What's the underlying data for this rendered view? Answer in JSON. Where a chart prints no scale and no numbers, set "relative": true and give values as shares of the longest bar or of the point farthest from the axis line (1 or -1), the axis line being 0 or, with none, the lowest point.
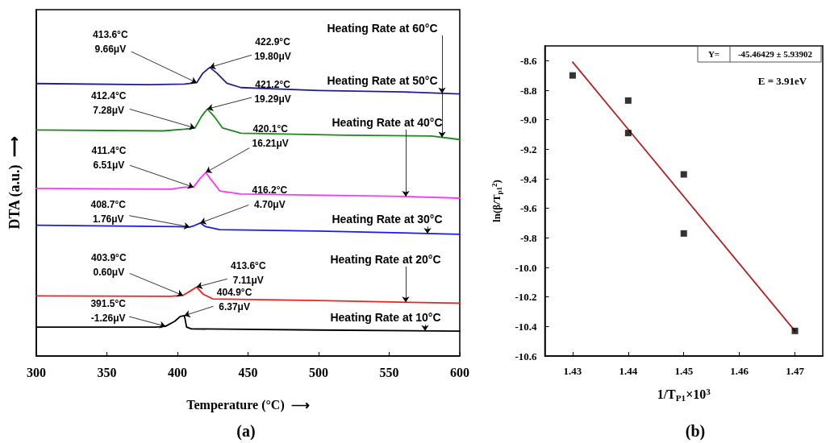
{
  "chart_data": [
    {
      "type": "line",
      "relative": true,
      "marker": "none",
      "xlabel": "Temperature (°C)  ⟶",
      "ylabel": "DTA (a.u.)  ⟶",
      "xlim": [
        300,
        600
      ],
      "xticks": [
        300,
        350,
        400,
        450,
        500,
        550,
        600
      ],
      "series": [
        {
          "name": "Heating Rate at 60°C",
          "color": "#1f1f8c",
          "x": [
            300,
            380,
            405,
            413.6,
            418,
            422.9,
            428,
            435,
            445,
            500,
            560,
            600
          ],
          "values": [
            0.944,
            0.94,
            0.942,
            0.947,
            0.98,
            1.0,
            0.98,
            0.945,
            0.93,
            0.92,
            0.915,
            0.908
          ]
        },
        {
          "name": "Heating Rate at 50°C",
          "color": "#1a8a1a",
          "x": [
            300,
            390,
            405,
            412.4,
            417,
            421.2,
            426,
            432,
            445,
            520,
            580,
            600
          ],
          "values": [
            0.783,
            0.78,
            0.786,
            0.79,
            0.83,
            0.856,
            0.83,
            0.79,
            0.772,
            0.765,
            0.762,
            0.75
          ]
        },
        {
          "name": "Heating Rate at 40°C",
          "color": "#ff33ff",
          "x": [
            300,
            395,
            405,
            411.4,
            416,
            420.1,
            424,
            430,
            445,
            560,
            600
          ],
          "values": [
            0.581,
            0.578,
            0.585,
            0.585,
            0.615,
            0.636,
            0.61,
            0.572,
            0.561,
            0.553,
            0.547
          ]
        },
        {
          "name": "Heating Rate at 30°C",
          "color": "#1a1aee",
          "x": [
            300,
            400,
            408.7,
            412,
            416.2,
            420,
            430,
            500,
            600
          ],
          "values": [
            0.453,
            0.448,
            0.447,
            0.452,
            0.461,
            0.448,
            0.438,
            0.433,
            0.422
          ]
        },
        {
          "name": "Heating Rate at 20°C",
          "color": "#ee2222",
          "x": [
            300,
            395,
            403.9,
            409,
            413.6,
            418,
            425,
            500,
            600
          ],
          "values": [
            0.208,
            0.207,
            0.21,
            0.225,
            0.239,
            0.215,
            0.198,
            0.192,
            0.183
          ]
        },
        {
          "name": "Heating Rate at 10°C",
          "color": "#000000",
          "x": [
            300,
            385,
            391.5,
            398,
            402,
            404.9,
            406.5,
            410,
            500,
            600
          ],
          "values": [
            0.1,
            0.1,
            0.103,
            0.12,
            0.137,
            0.14,
            0.1,
            0.094,
            0.09,
            0.086
          ]
        }
      ],
      "annotations": [
        {
          "text": "413.6°C\n9.66μV",
          "x": 413.6,
          "y": 0.947
        },
        {
          "text": "422.9°C\n19.80μV",
          "x": 422.9,
          "y": 1.0
        },
        {
          "text": "412.4°C\n7.28μV",
          "x": 412.4,
          "y": 0.79
        },
        {
          "text": "421.2°C\n19.29μV",
          "x": 421.2,
          "y": 0.856
        },
        {
          "text": "411.4°C\n6.51μV",
          "x": 411.4,
          "y": 0.585
        },
        {
          "text": "420.1°C\n16.21μV",
          "x": 420.1,
          "y": 0.636
        },
        {
          "text": "408.7°C\n1.76μV",
          "x": 408.7,
          "y": 0.447
        },
        {
          "text": "416.2°C\n4.70μV",
          "x": 416.2,
          "y": 0.461
        },
        {
          "text": "403.9°C\n0.60μV",
          "x": 403.9,
          "y": 0.21
        },
        {
          "text": "413.6°C\n7.11μV",
          "x": 413.6,
          "y": 0.239
        },
        {
          "text": "391.5°C\n-1.26μV",
          "x": 391.5,
          "y": 0.103
        },
        {
          "text": "404.9°C\n6.37μV",
          "x": 404.9,
          "y": 0.14
        },
        "(a)"
      ]
    },
    {
      "type": "scatter",
      "xlabel": "1/T$_{P1}$×10$^{3}$",
      "ylabel": "ln(β/T$_{p1}$$^{2}$)",
      "xlim": [
        1.425,
        1.475
      ],
      "xticks": [
        1.43,
        1.44,
        1.45,
        1.46,
        1.47
      ],
      "ylim": [
        -10.6,
        -8.5
      ],
      "yticks": [
        {
          "value": -10.6,
          "label": "-10.6"
        },
        {
          "value": -10.4,
          "label": "-10.4"
        },
        {
          "value": -10.2,
          "label": "-10.2"
        },
        {
          "value": -10,
          "label": "-10.0"
        },
        {
          "value": -9.8,
          "label": "-9.8"
        },
        {
          "value": -9.6,
          "label": "-9.6"
        },
        {
          "value": -9.4,
          "label": "-9.4"
        },
        {
          "value": -9.2,
          "label": "-9.2"
        },
        {
          "value": -9,
          "label": "-9.0"
        },
        {
          "value": -8.8,
          "label": "-8.8"
        },
        {
          "value": -8.6,
          "label": "-8.6"
        }
      ],
      "series": [
        {
          "type": "scatter",
          "marker": "square",
          "color": "#000000",
          "x": [
            1.43,
            1.44,
            1.44,
            1.45,
            1.45,
            1.47
          ],
          "values": [
            -8.7,
            -8.87,
            -9.09,
            -9.37,
            -9.77,
            -10.43
          ]
        },
        {
          "type": "line",
          "marker": "none",
          "color": "#b22222",
          "x": [
            1.43,
            1.47
          ],
          "values": [
            -8.61,
            -10.43
          ]
        }
      ],
      "annotations": [
        "Y=",
        "-45.46429 ± 5.93902",
        "E = 3.91eV",
        "(b)"
      ]
    }
  ]
}
